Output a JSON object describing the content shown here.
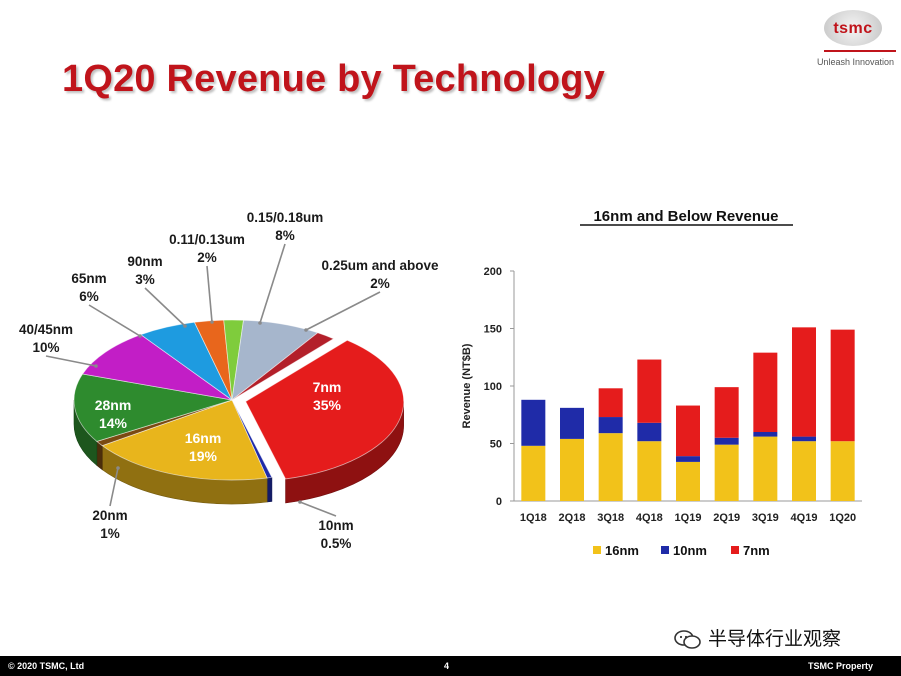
{
  "title": "1Q20 Revenue by Technology",
  "logo": {
    "text": "tsmc",
    "tagline": "Unleash Innovation"
  },
  "footer": {
    "copyright": "© 2020 TSMC, Ltd",
    "page": "4",
    "property": "TSMC Property"
  },
  "watermark": {
    "text": "半导体行业观察"
  },
  "colors": {
    "red": "#e51c1c",
    "yellow": "#e8b51c",
    "blue": "#1f2ba8",
    "green": "#2e8b2e",
    "magenta": "#c21ec6",
    "sky": "#1e9be0",
    "orange": "#e8661c",
    "lime": "#7fcc3c",
    "grey": "#a6b6cc",
    "brand": "#c0141b"
  },
  "chart_data": [
    {
      "type": "pie",
      "title": "1Q20 Revenue by Technology",
      "slices": [
        {
          "name": "7nm",
          "value": 35,
          "line1": "7nm",
          "line2": "35%",
          "color": "#e51c1c"
        },
        {
          "name": "10nm",
          "value": 0.5,
          "line1": "10nm",
          "line2": "0.5%",
          "color": "#1f2ba8"
        },
        {
          "name": "16nm",
          "value": 19,
          "line1": "16nm",
          "line2": "19%",
          "color": "#e8b51c"
        },
        {
          "name": "20nm",
          "value": 1,
          "line1": "20nm",
          "line2": "1%",
          "color": "#7a4a12"
        },
        {
          "name": "28nm",
          "value": 14,
          "line1": "28nm",
          "line2": "14%",
          "color": "#2e8b2e"
        },
        {
          "name": "40/45nm",
          "value": 10,
          "line1": "40/45nm",
          "line2": "10%",
          "color": "#c21ec6"
        },
        {
          "name": "65nm",
          "value": 6,
          "line1": "65nm",
          "line2": "6%",
          "color": "#1e9be0"
        },
        {
          "name": "90nm",
          "value": 3,
          "line1": "90nm",
          "line2": "3%",
          "color": "#e8661c"
        },
        {
          "name": "0.11/0.13um",
          "value": 2,
          "line1": "0.11/0.13um",
          "line2": "2%",
          "color": "#7fcc3c"
        },
        {
          "name": "0.15/0.18um",
          "value": 8,
          "line1": "0.15/0.18um",
          "line2": "8%",
          "color": "#a6b6cc"
        },
        {
          "name": "0.25um and above",
          "value": 2,
          "line1": "0.25um and above",
          "line2": "2%",
          "color": "#b3202a"
        }
      ]
    },
    {
      "type": "bar",
      "stacked": true,
      "title": "16nm and Below Revenue",
      "ylabel": "Revenue (NT$B)",
      "ylim": [
        0,
        200
      ],
      "yticks": [
        "0",
        "50",
        "100",
        "150",
        "200"
      ],
      "ytick_values": [
        0,
        50,
        100,
        150,
        200
      ],
      "categories": [
        "1Q18",
        "2Q18",
        "3Q18",
        "4Q18",
        "1Q19",
        "2Q19",
        "3Q19",
        "4Q19",
        "1Q20"
      ],
      "series": [
        {
          "name": "16nm",
          "color": "#f2c21a",
          "values": [
            48,
            54,
            59,
            52,
            34,
            49,
            56,
            52,
            52
          ]
        },
        {
          "name": "10nm",
          "color": "#1f2ba8",
          "values": [
            40,
            27,
            14,
            16,
            5,
            6,
            4,
            4,
            0
          ]
        },
        {
          "name": "7nm",
          "color": "#e51c1c",
          "values": [
            0,
            0,
            25,
            55,
            44,
            44,
            69,
            95,
            97
          ]
        }
      ],
      "legend": [
        "16nm",
        "10nm",
        "7nm"
      ]
    }
  ]
}
